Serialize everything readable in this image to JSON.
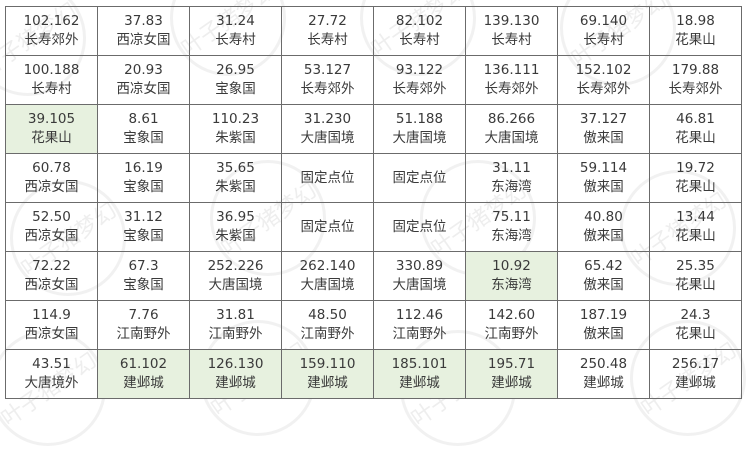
{
  "watermark": "叶子猪梦幻",
  "colors": {
    "highlight": "#e7f1df",
    "border": "#6b6b6b",
    "text": "#3a3a3a"
  },
  "rows": [
    [
      {
        "v": "102.162",
        "p": "长寿郊外"
      },
      {
        "v": "37.83",
        "p": "西凉女国"
      },
      {
        "v": "31.24",
        "p": "长寿村"
      },
      {
        "v": "27.72",
        "p": "长寿村"
      },
      {
        "v": "82.102",
        "p": "长寿村"
      },
      {
        "v": "139.130",
        "p": "长寿村"
      },
      {
        "v": "69.140",
        "p": "长寿村"
      },
      {
        "v": "18.98",
        "p": "花果山"
      }
    ],
    [
      {
        "v": "100.188",
        "p": "长寿村"
      },
      {
        "v": "20.93",
        "p": "西凉女国"
      },
      {
        "v": "26.95",
        "p": "宝象国"
      },
      {
        "v": "53.127",
        "p": "长寿郊外"
      },
      {
        "v": "93.122",
        "p": "长寿郊外"
      },
      {
        "v": "136.111",
        "p": "长寿郊外"
      },
      {
        "v": "152.102",
        "p": "长寿郊外"
      },
      {
        "v": "179.88",
        "p": "长寿郊外"
      }
    ],
    [
      {
        "v": "39.105",
        "p": "花果山",
        "h": true
      },
      {
        "v": "8.61",
        "p": "宝象国"
      },
      {
        "v": "110.23",
        "p": "朱紫国"
      },
      {
        "v": "31.230",
        "p": "大唐国境"
      },
      {
        "v": "51.188",
        "p": "大唐国境"
      },
      {
        "v": "86.266",
        "p": "大唐国境"
      },
      {
        "v": "37.127",
        "p": "傲来国"
      },
      {
        "v": "46.81",
        "p": "花果山"
      }
    ],
    [
      {
        "v": "60.78",
        "p": "西凉女国"
      },
      {
        "v": "16.19",
        "p": "宝象国"
      },
      {
        "v": "35.65",
        "p": "朱紫国"
      },
      {
        "p": "固定点位"
      },
      {
        "p": "固定点位"
      },
      {
        "v": "31.11",
        "p": "东海湾"
      },
      {
        "v": "59.114",
        "p": "傲来国"
      },
      {
        "v": "19.72",
        "p": "花果山"
      }
    ],
    [
      {
        "v": "52.50",
        "p": "西凉女国"
      },
      {
        "v": "31.12",
        "p": "宝象国"
      },
      {
        "v": "36.95",
        "p": "朱紫国"
      },
      {
        "p": "固定点位"
      },
      {
        "p": "固定点位"
      },
      {
        "v": "75.11",
        "p": "东海湾"
      },
      {
        "v": "40.80",
        "p": "傲来国"
      },
      {
        "v": "13.44",
        "p": "花果山"
      }
    ],
    [
      {
        "v": "72.22",
        "p": "西凉女国"
      },
      {
        "v": "67.3",
        "p": "宝象国"
      },
      {
        "v": "252.226",
        "p": "大唐国境"
      },
      {
        "v": "262.140",
        "p": "大唐国境"
      },
      {
        "v": "330.89",
        "p": "大唐国境"
      },
      {
        "v": "10.92",
        "p": "东海湾",
        "h": true
      },
      {
        "v": "65.42",
        "p": "傲来国"
      },
      {
        "v": "25.35",
        "p": "花果山"
      }
    ],
    [
      {
        "v": "114.9",
        "p": "西凉女国"
      },
      {
        "v": "7.76",
        "p": "江南野外"
      },
      {
        "v": "31.81",
        "p": "江南野外"
      },
      {
        "v": "48.50",
        "p": "江南野外"
      },
      {
        "v": "112.46",
        "p": "江南野外"
      },
      {
        "v": "142.60",
        "p": "江南野外"
      },
      {
        "v": "187.19",
        "p": "傲来国"
      },
      {
        "v": "24.3",
        "p": "花果山"
      }
    ],
    [
      {
        "v": "43.51",
        "p": "大唐境外"
      },
      {
        "v": "61.102",
        "p": "建邺城",
        "h": true
      },
      {
        "v": "126.130",
        "p": "建邺城",
        "h": true
      },
      {
        "v": "159.110",
        "p": "建邺城",
        "h": true
      },
      {
        "v": "185.101",
        "p": "建邺城",
        "h": true
      },
      {
        "v": "195.71",
        "p": "建邺城",
        "h": true
      },
      {
        "v": "250.48",
        "p": "建邺城"
      },
      {
        "v": "256.17",
        "p": "建邺城"
      }
    ]
  ]
}
